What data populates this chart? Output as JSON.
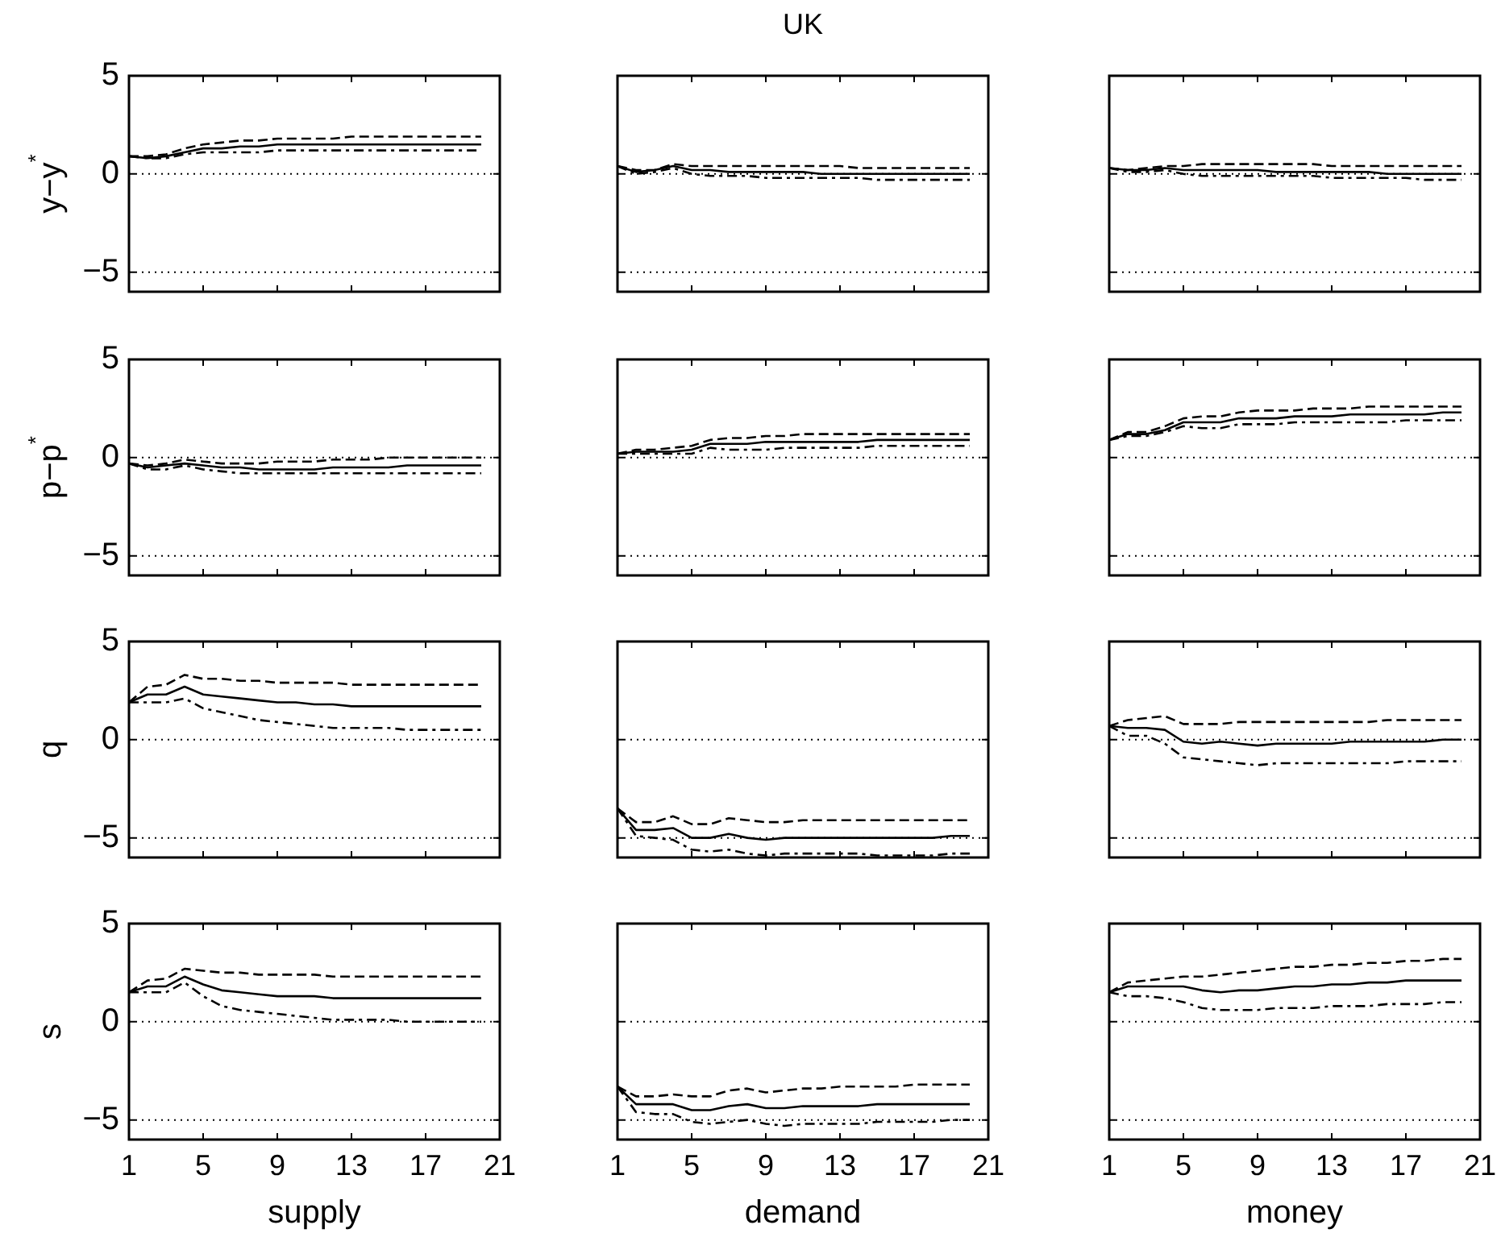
{
  "chart_data": [
    {
      "type": "line",
      "ylabel": "y−y$^{*}$",
      "x": [
        1,
        2,
        3,
        4,
        5,
        6,
        7,
        8,
        9,
        10,
        11,
        12,
        13,
        14,
        15,
        16,
        17,
        18,
        19,
        20
      ],
      "xlim": [
        1,
        21
      ],
      "xticks": [
        1,
        5,
        9,
        13,
        17,
        21
      ],
      "ylim": [
        -6,
        5
      ],
      "yticks": [
        -5,
        0,
        5
      ],
      "tick_labels": "y",
      "ref_lines": [
        {
          "axis": "y",
          "value": 0,
          "line_style": "dotted"
        },
        {
          "axis": "y",
          "value": -5,
          "line_style": "dotted"
        }
      ],
      "series": [
        {
          "color": "#000000",
          "line_style": "solid",
          "values": [
            0.9,
            0.8,
            0.9,
            1.1,
            1.3,
            1.3,
            1.4,
            1.4,
            1.5,
            1.5,
            1.5,
            1.5,
            1.5,
            1.5,
            1.5,
            1.5,
            1.5,
            1.5,
            1.5,
            1.5
          ]
        },
        {
          "color": "#000000",
          "line_style": "dashed",
          "values": [
            0.9,
            0.9,
            1.0,
            1.3,
            1.5,
            1.6,
            1.7,
            1.7,
            1.8,
            1.8,
            1.8,
            1.8,
            1.9,
            1.9,
            1.9,
            1.9,
            1.9,
            1.9,
            1.9,
            1.9
          ]
        },
        {
          "color": "#000000",
          "line_style": "dashdot",
          "values": [
            0.9,
            0.8,
            0.8,
            1.0,
            1.1,
            1.1,
            1.1,
            1.1,
            1.2,
            1.2,
            1.2,
            1.2,
            1.2,
            1.2,
            1.2,
            1.2,
            1.2,
            1.2,
            1.2,
            1.2
          ]
        }
      ]
    },
    {
      "type": "line",
      "title": "UK",
      "x": [
        1,
        2,
        3,
        4,
        5,
        6,
        7,
        8,
        9,
        10,
        11,
        12,
        13,
        14,
        15,
        16,
        17,
        18,
        19,
        20
      ],
      "xlim": [
        1,
        21
      ],
      "xticks": [
        1,
        5,
        9,
        13,
        17,
        21
      ],
      "ylim": [
        -6,
        5
      ],
      "yticks": [
        -5,
        0,
        5
      ],
      "tick_labels": false,
      "ref_lines": [
        {
          "axis": "y",
          "value": 0,
          "line_style": "dotted"
        },
        {
          "axis": "y",
          "value": -5,
          "line_style": "dotted"
        }
      ],
      "series": [
        {
          "color": "#000000",
          "line_style": "solid",
          "values": [
            0.4,
            0.1,
            0.2,
            0.4,
            0.2,
            0.2,
            0.1,
            0.1,
            0.1,
            0.1,
            0.1,
            0.0,
            0.0,
            0.0,
            0.0,
            0.0,
            0.0,
            0.0,
            0.0,
            0.0
          ]
        },
        {
          "color": "#000000",
          "line_style": "dashed",
          "values": [
            0.4,
            0.2,
            0.2,
            0.5,
            0.4,
            0.4,
            0.4,
            0.4,
            0.4,
            0.4,
            0.4,
            0.4,
            0.4,
            0.3,
            0.3,
            0.3,
            0.3,
            0.3,
            0.3,
            0.3
          ]
        },
        {
          "color": "#000000",
          "line_style": "dashdot",
          "values": [
            0.4,
            0.0,
            0.1,
            0.3,
            0.0,
            -0.1,
            -0.1,
            -0.1,
            -0.2,
            -0.2,
            -0.2,
            -0.2,
            -0.2,
            -0.2,
            -0.3,
            -0.3,
            -0.3,
            -0.3,
            -0.3,
            -0.3
          ]
        }
      ]
    },
    {
      "type": "line",
      "x": [
        1,
        2,
        3,
        4,
        5,
        6,
        7,
        8,
        9,
        10,
        11,
        12,
        13,
        14,
        15,
        16,
        17,
        18,
        19,
        20
      ],
      "xlim": [
        1,
        21
      ],
      "xticks": [
        1,
        5,
        9,
        13,
        17,
        21
      ],
      "ylim": [
        -6,
        5
      ],
      "yticks": [
        -5,
        0,
        5
      ],
      "tick_labels": false,
      "ref_lines": [
        {
          "axis": "y",
          "value": 0,
          "line_style": "dotted"
        },
        {
          "axis": "y",
          "value": -5,
          "line_style": "dotted"
        }
      ],
      "series": [
        {
          "color": "#000000",
          "line_style": "solid",
          "values": [
            0.3,
            0.2,
            0.2,
            0.3,
            0.2,
            0.2,
            0.2,
            0.2,
            0.2,
            0.1,
            0.1,
            0.1,
            0.1,
            0.1,
            0.1,
            0.0,
            0.0,
            0.0,
            0.0,
            0.0
          ]
        },
        {
          "color": "#000000",
          "line_style": "dashed",
          "values": [
            0.3,
            0.2,
            0.3,
            0.4,
            0.4,
            0.5,
            0.5,
            0.5,
            0.5,
            0.5,
            0.5,
            0.5,
            0.4,
            0.4,
            0.4,
            0.4,
            0.4,
            0.4,
            0.4,
            0.4
          ]
        },
        {
          "color": "#000000",
          "line_style": "dashdot",
          "values": [
            0.3,
            0.1,
            0.1,
            0.2,
            0.0,
            -0.1,
            -0.1,
            -0.1,
            -0.1,
            -0.1,
            -0.1,
            -0.1,
            -0.2,
            -0.2,
            -0.2,
            -0.2,
            -0.2,
            -0.3,
            -0.3,
            -0.3
          ]
        }
      ]
    },
    {
      "type": "line",
      "ylabel": "p−p$^{*}$",
      "x": [
        1,
        2,
        3,
        4,
        5,
        6,
        7,
        8,
        9,
        10,
        11,
        12,
        13,
        14,
        15,
        16,
        17,
        18,
        19,
        20
      ],
      "xlim": [
        1,
        21
      ],
      "xticks": [
        1,
        5,
        9,
        13,
        17,
        21
      ],
      "ylim": [
        -6,
        5
      ],
      "yticks": [
        -5,
        0,
        5
      ],
      "tick_labels": "y",
      "ref_lines": [
        {
          "axis": "y",
          "value": 0,
          "line_style": "dotted"
        },
        {
          "axis": "y",
          "value": -5,
          "line_style": "dotted"
        }
      ],
      "series": [
        {
          "color": "#000000",
          "line_style": "solid",
          "values": [
            -0.3,
            -0.5,
            -0.4,
            -0.3,
            -0.4,
            -0.5,
            -0.5,
            -0.6,
            -0.6,
            -0.6,
            -0.6,
            -0.5,
            -0.5,
            -0.5,
            -0.5,
            -0.4,
            -0.4,
            -0.4,
            -0.4,
            -0.4
          ]
        },
        {
          "color": "#000000",
          "line_style": "dashed",
          "values": [
            -0.3,
            -0.4,
            -0.3,
            -0.1,
            -0.2,
            -0.3,
            -0.3,
            -0.3,
            -0.2,
            -0.2,
            -0.2,
            -0.1,
            -0.1,
            -0.1,
            0.0,
            0.0,
            0.0,
            0.0,
            0.0,
            0.0
          ]
        },
        {
          "color": "#000000",
          "line_style": "dashdot",
          "values": [
            -0.3,
            -0.6,
            -0.6,
            -0.4,
            -0.6,
            -0.7,
            -0.8,
            -0.8,
            -0.8,
            -0.8,
            -0.8,
            -0.8,
            -0.8,
            -0.8,
            -0.8,
            -0.8,
            -0.8,
            -0.8,
            -0.8,
            -0.8
          ]
        }
      ]
    },
    {
      "type": "line",
      "x": [
        1,
        2,
        3,
        4,
        5,
        6,
        7,
        8,
        9,
        10,
        11,
        12,
        13,
        14,
        15,
        16,
        17,
        18,
        19,
        20
      ],
      "xlim": [
        1,
        21
      ],
      "xticks": [
        1,
        5,
        9,
        13,
        17,
        21
      ],
      "ylim": [
        -6,
        5
      ],
      "yticks": [
        -5,
        0,
        5
      ],
      "tick_labels": false,
      "ref_lines": [
        {
          "axis": "y",
          "value": 0,
          "line_style": "dotted"
        },
        {
          "axis": "y",
          "value": -5,
          "line_style": "dotted"
        }
      ],
      "series": [
        {
          "color": "#000000",
          "line_style": "solid",
          "values": [
            0.2,
            0.3,
            0.3,
            0.3,
            0.4,
            0.7,
            0.7,
            0.7,
            0.8,
            0.8,
            0.8,
            0.8,
            0.8,
            0.8,
            0.9,
            0.9,
            0.9,
            0.9,
            0.9,
            0.9
          ]
        },
        {
          "color": "#000000",
          "line_style": "dashed",
          "values": [
            0.2,
            0.4,
            0.4,
            0.5,
            0.6,
            0.9,
            1.0,
            1.0,
            1.1,
            1.1,
            1.2,
            1.2,
            1.2,
            1.2,
            1.2,
            1.2,
            1.2,
            1.2,
            1.2,
            1.2
          ]
        },
        {
          "color": "#000000",
          "line_style": "dashdot",
          "values": [
            0.2,
            0.2,
            0.2,
            0.2,
            0.2,
            0.5,
            0.4,
            0.4,
            0.4,
            0.5,
            0.5,
            0.5,
            0.5,
            0.5,
            0.6,
            0.6,
            0.6,
            0.6,
            0.6,
            0.6
          ]
        }
      ]
    },
    {
      "type": "line",
      "x": [
        1,
        2,
        3,
        4,
        5,
        6,
        7,
        8,
        9,
        10,
        11,
        12,
        13,
        14,
        15,
        16,
        17,
        18,
        19,
        20
      ],
      "xlim": [
        1,
        21
      ],
      "xticks": [
        1,
        5,
        9,
        13,
        17,
        21
      ],
      "ylim": [
        -6,
        5
      ],
      "yticks": [
        -5,
        0,
        5
      ],
      "tick_labels": false,
      "ref_lines": [
        {
          "axis": "y",
          "value": 0,
          "line_style": "dotted"
        },
        {
          "axis": "y",
          "value": -5,
          "line_style": "dotted"
        }
      ],
      "series": [
        {
          "color": "#000000",
          "line_style": "solid",
          "values": [
            0.9,
            1.2,
            1.2,
            1.4,
            1.8,
            1.8,
            1.8,
            2.0,
            2.0,
            2.0,
            2.1,
            2.1,
            2.1,
            2.2,
            2.2,
            2.2,
            2.2,
            2.2,
            2.3,
            2.3
          ]
        },
        {
          "color": "#000000",
          "line_style": "dashed",
          "values": [
            0.9,
            1.3,
            1.3,
            1.6,
            2.0,
            2.1,
            2.1,
            2.3,
            2.4,
            2.4,
            2.4,
            2.5,
            2.5,
            2.5,
            2.6,
            2.6,
            2.6,
            2.6,
            2.6,
            2.6
          ]
        },
        {
          "color": "#000000",
          "line_style": "dashdot",
          "values": [
            0.9,
            1.1,
            1.1,
            1.3,
            1.6,
            1.5,
            1.5,
            1.7,
            1.7,
            1.7,
            1.8,
            1.8,
            1.8,
            1.8,
            1.8,
            1.8,
            1.9,
            1.9,
            1.9,
            1.9
          ]
        }
      ]
    },
    {
      "type": "line",
      "ylabel": "q",
      "x": [
        1,
        2,
        3,
        4,
        5,
        6,
        7,
        8,
        9,
        10,
        11,
        12,
        13,
        14,
        15,
        16,
        17,
        18,
        19,
        20
      ],
      "xlim": [
        1,
        21
      ],
      "xticks": [
        1,
        5,
        9,
        13,
        17,
        21
      ],
      "ylim": [
        -6,
        5
      ],
      "yticks": [
        -5,
        0,
        5
      ],
      "tick_labels": "y",
      "ref_lines": [
        {
          "axis": "y",
          "value": 0,
          "line_style": "dotted"
        },
        {
          "axis": "y",
          "value": -5,
          "line_style": "dotted"
        }
      ],
      "series": [
        {
          "color": "#000000",
          "line_style": "solid",
          "values": [
            1.9,
            2.3,
            2.3,
            2.7,
            2.3,
            2.2,
            2.1,
            2.0,
            1.9,
            1.9,
            1.8,
            1.8,
            1.7,
            1.7,
            1.7,
            1.7,
            1.7,
            1.7,
            1.7,
            1.7
          ]
        },
        {
          "color": "#000000",
          "line_style": "dashed",
          "values": [
            1.9,
            2.7,
            2.8,
            3.3,
            3.1,
            3.1,
            3.0,
            3.0,
            2.9,
            2.9,
            2.9,
            2.9,
            2.8,
            2.8,
            2.8,
            2.8,
            2.8,
            2.8,
            2.8,
            2.8
          ]
        },
        {
          "color": "#000000",
          "line_style": "dashdot",
          "values": [
            1.9,
            1.9,
            1.9,
            2.1,
            1.6,
            1.4,
            1.2,
            1.0,
            0.9,
            0.8,
            0.7,
            0.6,
            0.6,
            0.6,
            0.6,
            0.5,
            0.5,
            0.5,
            0.5,
            0.5
          ]
        }
      ]
    },
    {
      "type": "line",
      "x": [
        1,
        2,
        3,
        4,
        5,
        6,
        7,
        8,
        9,
        10,
        11,
        12,
        13,
        14,
        15,
        16,
        17,
        18,
        19,
        20
      ],
      "xlim": [
        1,
        21
      ],
      "xticks": [
        1,
        5,
        9,
        13,
        17,
        21
      ],
      "ylim": [
        -6,
        5
      ],
      "yticks": [
        -5,
        0,
        5
      ],
      "tick_labels": false,
      "ref_lines": [
        {
          "axis": "y",
          "value": 0,
          "line_style": "dotted"
        },
        {
          "axis": "y",
          "value": -5,
          "line_style": "dotted"
        }
      ],
      "series": [
        {
          "color": "#000000",
          "line_style": "solid",
          "values": [
            -3.5,
            -4.6,
            -4.6,
            -4.5,
            -5.0,
            -5.0,
            -4.8,
            -5.0,
            -5.1,
            -5.0,
            -5.0,
            -5.0,
            -5.0,
            -5.0,
            -5.0,
            -5.0,
            -5.0,
            -5.0,
            -4.9,
            -4.9
          ]
        },
        {
          "color": "#000000",
          "line_style": "dashed",
          "values": [
            -3.5,
            -4.2,
            -4.2,
            -3.9,
            -4.3,
            -4.3,
            -4.0,
            -4.1,
            -4.2,
            -4.2,
            -4.1,
            -4.1,
            -4.1,
            -4.1,
            -4.1,
            -4.1,
            -4.1,
            -4.1,
            -4.1,
            -4.1
          ]
        },
        {
          "color": "#000000",
          "line_style": "dashdot",
          "values": [
            -3.5,
            -4.9,
            -5.0,
            -5.1,
            -5.6,
            -5.7,
            -5.6,
            -5.8,
            -5.9,
            -5.8,
            -5.8,
            -5.8,
            -5.8,
            -5.8,
            -5.9,
            -5.9,
            -5.9,
            -5.9,
            -5.8,
            -5.8
          ]
        }
      ]
    },
    {
      "type": "line",
      "x": [
        1,
        2,
        3,
        4,
        5,
        6,
        7,
        8,
        9,
        10,
        11,
        12,
        13,
        14,
        15,
        16,
        17,
        18,
        19,
        20
      ],
      "xlim": [
        1,
        21
      ],
      "xticks": [
        1,
        5,
        9,
        13,
        17,
        21
      ],
      "ylim": [
        -6,
        5
      ],
      "yticks": [
        -5,
        0,
        5
      ],
      "tick_labels": false,
      "ref_lines": [
        {
          "axis": "y",
          "value": 0,
          "line_style": "dotted"
        },
        {
          "axis": "y",
          "value": -5,
          "line_style": "dotted"
        }
      ],
      "series": [
        {
          "color": "#000000",
          "line_style": "solid",
          "values": [
            0.7,
            0.6,
            0.6,
            0.5,
            -0.1,
            -0.2,
            -0.1,
            -0.2,
            -0.3,
            -0.2,
            -0.2,
            -0.2,
            -0.2,
            -0.1,
            -0.1,
            -0.1,
            -0.1,
            -0.1,
            0.0,
            0.0
          ]
        },
        {
          "color": "#000000",
          "line_style": "dashed",
          "values": [
            0.7,
            1.0,
            1.1,
            1.2,
            0.8,
            0.8,
            0.8,
            0.9,
            0.9,
            0.9,
            0.9,
            0.9,
            0.9,
            0.9,
            0.9,
            1.0,
            1.0,
            1.0,
            1.0,
            1.0
          ]
        },
        {
          "color": "#000000",
          "line_style": "dashdot",
          "values": [
            0.7,
            0.2,
            0.2,
            -0.2,
            -0.9,
            -1.0,
            -1.1,
            -1.2,
            -1.3,
            -1.2,
            -1.2,
            -1.2,
            -1.2,
            -1.2,
            -1.2,
            -1.2,
            -1.1,
            -1.1,
            -1.1,
            -1.1
          ]
        }
      ]
    },
    {
      "type": "line",
      "ylabel": "s",
      "xlabel": "supply",
      "x": [
        1,
        2,
        3,
        4,
        5,
        6,
        7,
        8,
        9,
        10,
        11,
        12,
        13,
        14,
        15,
        16,
        17,
        18,
        19,
        20
      ],
      "xlim": [
        1,
        21
      ],
      "xticks": [
        1,
        5,
        9,
        13,
        17,
        21
      ],
      "ylim": [
        -6,
        5
      ],
      "yticks": [
        -5,
        0,
        5
      ],
      "ref_lines": [
        {
          "axis": "y",
          "value": 0,
          "line_style": "dotted"
        },
        {
          "axis": "y",
          "value": -5,
          "line_style": "dotted"
        }
      ],
      "series": [
        {
          "color": "#000000",
          "line_style": "solid",
          "values": [
            1.5,
            1.8,
            1.8,
            2.3,
            1.9,
            1.6,
            1.5,
            1.4,
            1.3,
            1.3,
            1.3,
            1.2,
            1.2,
            1.2,
            1.2,
            1.2,
            1.2,
            1.2,
            1.2,
            1.2
          ]
        },
        {
          "color": "#000000",
          "line_style": "dashed",
          "values": [
            1.5,
            2.1,
            2.2,
            2.7,
            2.6,
            2.5,
            2.5,
            2.4,
            2.4,
            2.4,
            2.4,
            2.3,
            2.3,
            2.3,
            2.3,
            2.3,
            2.3,
            2.3,
            2.3,
            2.3
          ]
        },
        {
          "color": "#000000",
          "line_style": "dashdot",
          "values": [
            1.5,
            1.5,
            1.5,
            2.0,
            1.3,
            0.8,
            0.6,
            0.5,
            0.4,
            0.3,
            0.2,
            0.1,
            0.1,
            0.1,
            0.1,
            0.0,
            0.0,
            0.0,
            0.0,
            0.0
          ]
        }
      ]
    },
    {
      "type": "line",
      "xlabel": "demand",
      "x": [
        1,
        2,
        3,
        4,
        5,
        6,
        7,
        8,
        9,
        10,
        11,
        12,
        13,
        14,
        15,
        16,
        17,
        18,
        19,
        20
      ],
      "xlim": [
        1,
        21
      ],
      "xticks": [
        1,
        5,
        9,
        13,
        17,
        21
      ],
      "ylim": [
        -6,
        5
      ],
      "yticks": [
        -5,
        0,
        5
      ],
      "tick_labels": "x",
      "ref_lines": [
        {
          "axis": "y",
          "value": 0,
          "line_style": "dotted"
        },
        {
          "axis": "y",
          "value": -5,
          "line_style": "dotted"
        }
      ],
      "series": [
        {
          "color": "#000000",
          "line_style": "solid",
          "values": [
            -3.3,
            -4.2,
            -4.2,
            -4.2,
            -4.5,
            -4.5,
            -4.3,
            -4.2,
            -4.4,
            -4.4,
            -4.3,
            -4.3,
            -4.3,
            -4.3,
            -4.2,
            -4.2,
            -4.2,
            -4.2,
            -4.2,
            -4.2
          ]
        },
        {
          "color": "#000000",
          "line_style": "dashed",
          "values": [
            -3.3,
            -3.8,
            -3.8,
            -3.7,
            -3.8,
            -3.8,
            -3.5,
            -3.4,
            -3.6,
            -3.5,
            -3.4,
            -3.4,
            -3.3,
            -3.3,
            -3.3,
            -3.3,
            -3.2,
            -3.2,
            -3.2,
            -3.2
          ]
        },
        {
          "color": "#000000",
          "line_style": "dashdot",
          "values": [
            -3.3,
            -4.6,
            -4.7,
            -4.7,
            -5.1,
            -5.2,
            -5.1,
            -5.0,
            -5.2,
            -5.3,
            -5.2,
            -5.2,
            -5.2,
            -5.2,
            -5.1,
            -5.1,
            -5.1,
            -5.1,
            -5.0,
            -5.0
          ]
        }
      ]
    },
    {
      "type": "line",
      "xlabel": "money",
      "x": [
        1,
        2,
        3,
        4,
        5,
        6,
        7,
        8,
        9,
        10,
        11,
        12,
        13,
        14,
        15,
        16,
        17,
        18,
        19,
        20
      ],
      "xlim": [
        1,
        21
      ],
      "xticks": [
        1,
        5,
        9,
        13,
        17,
        21
      ],
      "ylim": [
        -6,
        5
      ],
      "yticks": [
        -5,
        0,
        5
      ],
      "tick_labels": "x",
      "ref_lines": [
        {
          "axis": "y",
          "value": 0,
          "line_style": "dotted"
        },
        {
          "axis": "y",
          "value": -5,
          "line_style": "dotted"
        }
      ],
      "series": [
        {
          "color": "#000000",
          "line_style": "solid",
          "values": [
            1.5,
            1.8,
            1.8,
            1.8,
            1.8,
            1.6,
            1.5,
            1.6,
            1.6,
            1.7,
            1.8,
            1.8,
            1.9,
            1.9,
            2.0,
            2.0,
            2.1,
            2.1,
            2.1,
            2.1
          ]
        },
        {
          "color": "#000000",
          "line_style": "dashed",
          "values": [
            1.5,
            2.0,
            2.1,
            2.2,
            2.3,
            2.3,
            2.4,
            2.5,
            2.6,
            2.7,
            2.8,
            2.8,
            2.9,
            2.9,
            3.0,
            3.0,
            3.1,
            3.1,
            3.2,
            3.2
          ]
        },
        {
          "color": "#000000",
          "line_style": "dashdot",
          "values": [
            1.5,
            1.3,
            1.3,
            1.2,
            1.0,
            0.7,
            0.6,
            0.6,
            0.6,
            0.7,
            0.7,
            0.7,
            0.8,
            0.8,
            0.8,
            0.9,
            0.9,
            0.9,
            1.0,
            1.0
          ]
        }
      ]
    }
  ]
}
